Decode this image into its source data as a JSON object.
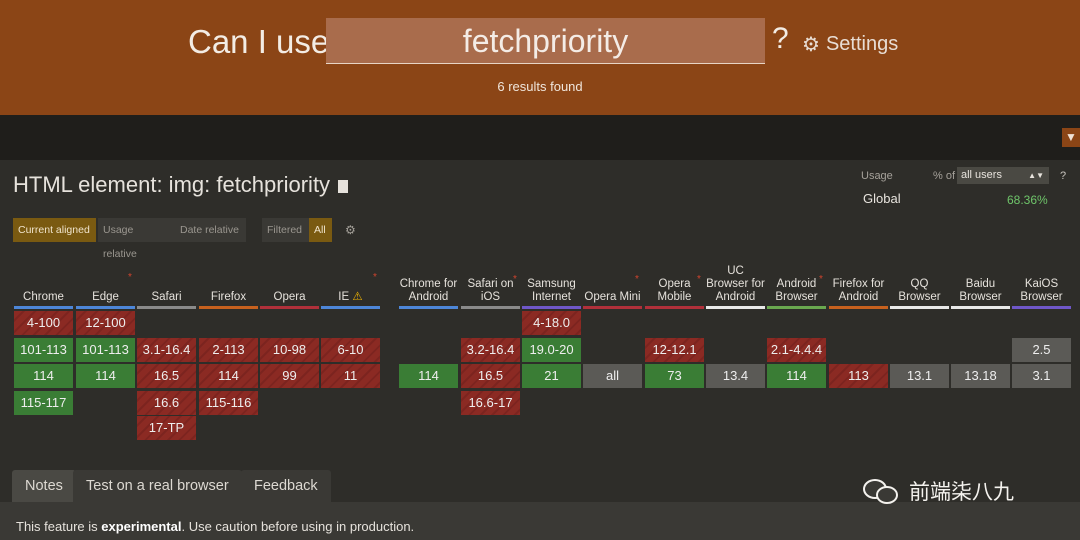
{
  "header": {
    "can_i_use": "Can I use",
    "search_value": "fetchpriority",
    "question": "?",
    "settings_label": "Settings",
    "results": "6 results found"
  },
  "feature": {
    "title": "HTML element: img: fetchpriority"
  },
  "usage": {
    "label": "Usage",
    "pct_of": "% of",
    "select_value": "all users",
    "help": "?",
    "scope": "Global",
    "value": "68.36%"
  },
  "toggles": {
    "current_aligned": "Current aligned",
    "usage_relative": "Usage relative",
    "date_relative": "Date relative",
    "filtered": "Filtered",
    "all": "All"
  },
  "browsers": [
    {
      "name": "Chrome",
      "color": "#4d86d8",
      "star": false
    },
    {
      "name": "Edge",
      "color": "#4d86d8",
      "star": true
    },
    {
      "name": "Safari",
      "color": "#8a8a8a",
      "star": false
    },
    {
      "name": "Firefox",
      "color": "#c7611e",
      "star": false
    },
    {
      "name": "Opera",
      "color": "#b0303a",
      "star": false
    },
    {
      "name": "IE",
      "color": "#4d86d8",
      "star": true,
      "warn": true
    },
    {
      "name": "Chrome for Android",
      "color": "#4d86d8",
      "star": false
    },
    {
      "name": "Safari on iOS",
      "color": "#8a8a8a",
      "star": true
    },
    {
      "name": "Samsung Internet",
      "color": "#6f57c8",
      "star": false
    },
    {
      "name": "Opera Mini",
      "color": "#b0303a",
      "star": true
    },
    {
      "name": "Opera Mobile",
      "color": "#b0303a",
      "star": true
    },
    {
      "name": "UC Browser for Android",
      "color": "#e8e8e8",
      "star": false
    },
    {
      "name": "Android Browser",
      "color": "#6aa84f",
      "star": true
    },
    {
      "name": "Firefox for Android",
      "color": "#c7611e",
      "star": false
    },
    {
      "name": "QQ Browser",
      "color": "#e8e8e8",
      "star": false
    },
    {
      "name": "Baidu Browser",
      "color": "#e8e8e8",
      "star": false
    },
    {
      "name": "KaiOS Browser",
      "color": "#6f57c8",
      "star": false
    }
  ],
  "support": {
    "Chrome": [
      [
        "4-100",
        "r"
      ],
      [
        "101-113",
        "g"
      ],
      [
        "114",
        "g"
      ],
      [
        "115-117",
        "g"
      ]
    ],
    "Edge": [
      [
        "12-100",
        "r"
      ],
      [
        "101-113",
        "g"
      ],
      [
        "114",
        "g"
      ]
    ],
    "Safari": [
      null,
      [
        "3.1-16.4",
        "r"
      ],
      [
        "16.5",
        "r"
      ],
      [
        "16.6",
        "r"
      ],
      [
        "17-TP",
        "r"
      ]
    ],
    "Firefox": [
      null,
      [
        "2-113",
        "r"
      ],
      [
        "114",
        "r"
      ],
      [
        "115-116",
        "r"
      ]
    ],
    "Opera": [
      null,
      [
        "10-98",
        "r"
      ],
      [
        "99",
        "r"
      ]
    ],
    "IE": [
      null,
      [
        "6-10",
        "r"
      ],
      [
        "11",
        "r"
      ]
    ],
    "Chrome for Android": [
      null,
      null,
      [
        "114",
        "g"
      ]
    ],
    "Safari on iOS": [
      null,
      [
        "3.2-16.4",
        "r"
      ],
      [
        "16.5",
        "r"
      ],
      [
        "16.6-17",
        "r"
      ]
    ],
    "Samsung Internet": [
      [
        "4-18.0",
        "r"
      ],
      [
        "19.0-20",
        "g"
      ],
      [
        "21",
        "g"
      ]
    ],
    "Opera Mini": [
      null,
      null,
      [
        "all",
        "gr"
      ]
    ],
    "Opera Mobile": [
      null,
      [
        "12-12.1",
        "r"
      ],
      [
        "73",
        "g"
      ]
    ],
    "UC Browser for Android": [
      null,
      null,
      [
        "13.4",
        "gr"
      ]
    ],
    "Android Browser": [
      null,
      [
        "2.1-4.4.4",
        "r"
      ],
      [
        "114",
        "g"
      ]
    ],
    "Firefox for Android": [
      null,
      null,
      [
        "113",
        "r"
      ]
    ],
    "QQ Browser": [
      null,
      null,
      [
        "13.1",
        "gr"
      ]
    ],
    "Baidu Browser": [
      null,
      null,
      [
        "13.18",
        "gr"
      ]
    ],
    "KaiOS Browser": [
      null,
      [
        "2.5",
        "gr"
      ],
      [
        "3.1",
        "gr"
      ]
    ]
  },
  "tabs": {
    "notes": "Notes",
    "test": "Test on a real browser",
    "feedback": "Feedback"
  },
  "note": {
    "prefix": "This feature is ",
    "emph": "experimental",
    "suffix": ". Use caution before using in production."
  },
  "watermark": {
    "text": "前端柒八九"
  }
}
